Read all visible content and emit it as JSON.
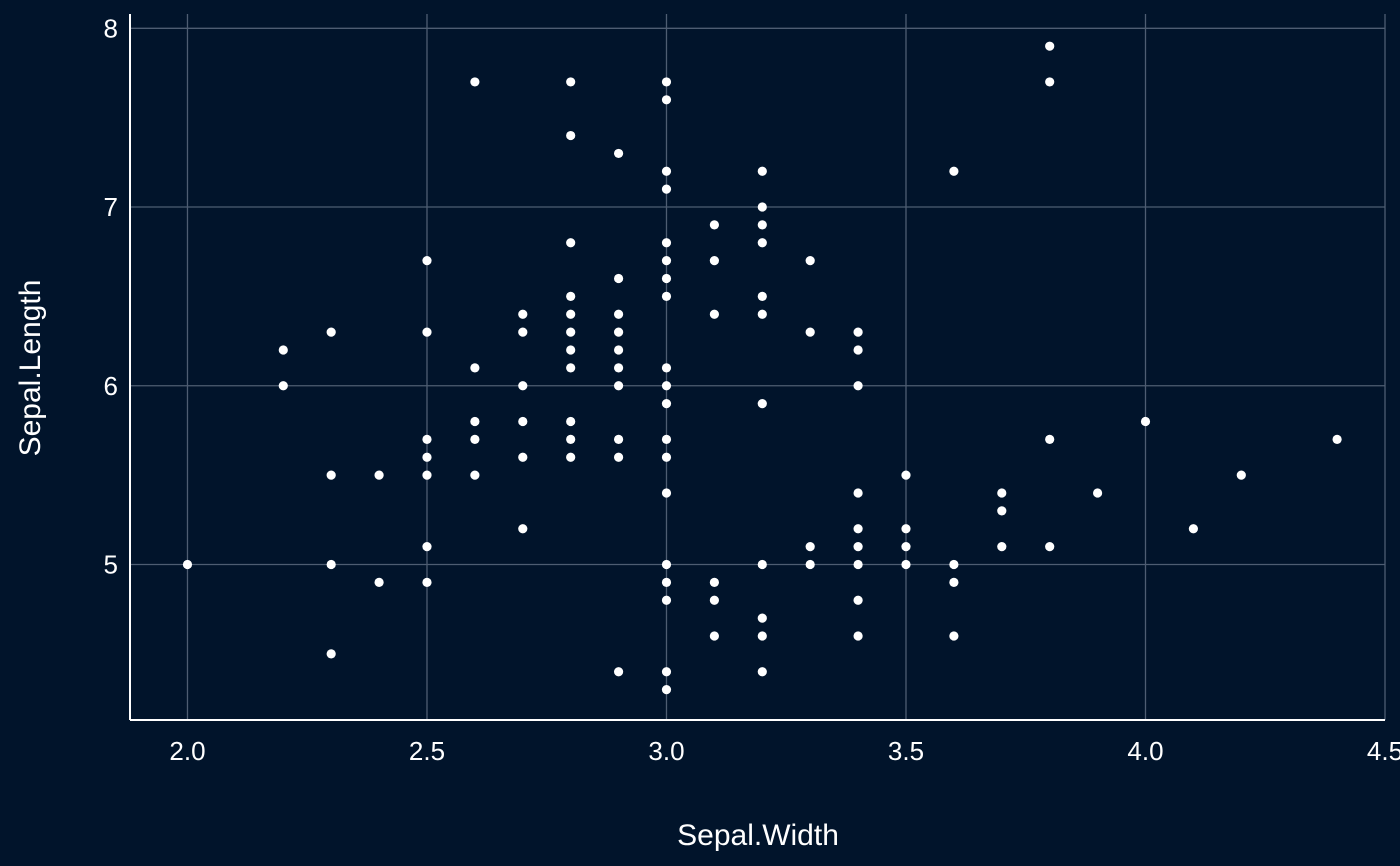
{
  "chart_data": {
    "type": "scatter",
    "title": "",
    "xlabel": "Sepal.Width",
    "ylabel": "Sepal.Length",
    "xlim": [
      1.88,
      4.5
    ],
    "ylim": [
      4.13,
      8.08
    ],
    "x_ticks": [
      "2.0",
      "2.5",
      "3.0",
      "3.5",
      "4.0",
      "4.5"
    ],
    "y_ticks": [
      "5",
      "6",
      "7",
      "8"
    ],
    "grid": true,
    "colors": {
      "background": "#01142b",
      "grid": "#4e5d72",
      "axis": "#ffffff",
      "point": "#ffffff",
      "text": "#ffffff"
    },
    "points": [
      [
        2.0,
        5.0
      ],
      [
        2.2,
        6.2
      ],
      [
        2.2,
        6.0
      ],
      [
        2.3,
        6.3
      ],
      [
        2.3,
        5.5
      ],
      [
        2.3,
        5.0
      ],
      [
        2.3,
        4.5
      ],
      [
        2.4,
        5.5
      ],
      [
        2.4,
        4.9
      ],
      [
        2.5,
        6.7
      ],
      [
        2.5,
        6.3
      ],
      [
        2.5,
        5.7
      ],
      [
        2.5,
        5.6
      ],
      [
        2.5,
        5.5
      ],
      [
        2.5,
        5.1
      ],
      [
        2.5,
        4.9
      ],
      [
        2.6,
        7.7
      ],
      [
        2.6,
        6.1
      ],
      [
        2.6,
        5.8
      ],
      [
        2.6,
        5.7
      ],
      [
        2.6,
        5.5
      ],
      [
        2.7,
        6.4
      ],
      [
        2.7,
        6.3
      ],
      [
        2.7,
        6.0
      ],
      [
        2.7,
        5.8
      ],
      [
        2.7,
        5.6
      ],
      [
        2.7,
        5.2
      ],
      [
        2.8,
        7.7
      ],
      [
        2.8,
        7.4
      ],
      [
        2.8,
        6.8
      ],
      [
        2.8,
        6.5
      ],
      [
        2.8,
        6.4
      ],
      [
        2.8,
        6.3
      ],
      [
        2.8,
        6.2
      ],
      [
        2.8,
        6.1
      ],
      [
        2.8,
        5.8
      ],
      [
        2.8,
        5.7
      ],
      [
        2.8,
        5.6
      ],
      [
        2.9,
        7.3
      ],
      [
        2.9,
        6.6
      ],
      [
        2.9,
        6.4
      ],
      [
        2.9,
        6.3
      ],
      [
        2.9,
        6.2
      ],
      [
        2.9,
        6.1
      ],
      [
        2.9,
        6.0
      ],
      [
        2.9,
        5.7
      ],
      [
        2.9,
        5.6
      ],
      [
        2.9,
        4.4
      ],
      [
        3.0,
        7.7
      ],
      [
        3.0,
        7.6
      ],
      [
        3.0,
        7.2
      ],
      [
        3.0,
        7.1
      ],
      [
        3.0,
        6.8
      ],
      [
        3.0,
        6.7
      ],
      [
        3.0,
        6.6
      ],
      [
        3.0,
        6.5
      ],
      [
        3.0,
        6.1
      ],
      [
        3.0,
        6.0
      ],
      [
        3.0,
        5.9
      ],
      [
        3.0,
        5.7
      ],
      [
        3.0,
        5.6
      ],
      [
        3.0,
        5.4
      ],
      [
        3.0,
        5.0
      ],
      [
        3.0,
        4.9
      ],
      [
        3.0,
        4.8
      ],
      [
        3.0,
        4.4
      ],
      [
        3.0,
        4.3
      ],
      [
        3.1,
        6.9
      ],
      [
        3.1,
        6.7
      ],
      [
        3.1,
        6.4
      ],
      [
        3.1,
        4.9
      ],
      [
        3.1,
        4.8
      ],
      [
        3.1,
        4.6
      ],
      [
        3.2,
        7.2
      ],
      [
        3.2,
        7.0
      ],
      [
        3.2,
        6.9
      ],
      [
        3.2,
        6.8
      ],
      [
        3.2,
        6.5
      ],
      [
        3.2,
        6.4
      ],
      [
        3.2,
        5.9
      ],
      [
        3.2,
        5.0
      ],
      [
        3.2,
        4.7
      ],
      [
        3.2,
        4.6
      ],
      [
        3.2,
        4.4
      ],
      [
        3.3,
        6.7
      ],
      [
        3.3,
        6.3
      ],
      [
        3.3,
        5.1
      ],
      [
        3.3,
        5.0
      ],
      [
        3.4,
        6.3
      ],
      [
        3.4,
        6.2
      ],
      [
        3.4,
        6.0
      ],
      [
        3.4,
        5.4
      ],
      [
        3.4,
        5.2
      ],
      [
        3.4,
        5.1
      ],
      [
        3.4,
        5.0
      ],
      [
        3.4,
        4.8
      ],
      [
        3.4,
        4.6
      ],
      [
        3.5,
        5.5
      ],
      [
        3.5,
        5.2
      ],
      [
        3.5,
        5.1
      ],
      [
        3.5,
        5.0
      ],
      [
        3.6,
        7.2
      ],
      [
        3.6,
        5.0
      ],
      [
        3.6,
        4.9
      ],
      [
        3.6,
        4.6
      ],
      [
        3.7,
        5.4
      ],
      [
        3.7,
        5.3
      ],
      [
        3.7,
        5.1
      ],
      [
        3.8,
        7.9
      ],
      [
        3.8,
        7.7
      ],
      [
        3.8,
        5.7
      ],
      [
        3.8,
        5.1
      ],
      [
        3.9,
        5.4
      ],
      [
        4.0,
        5.8
      ],
      [
        4.1,
        5.2
      ],
      [
        4.2,
        5.5
      ],
      [
        4.4,
        5.7
      ]
    ]
  }
}
